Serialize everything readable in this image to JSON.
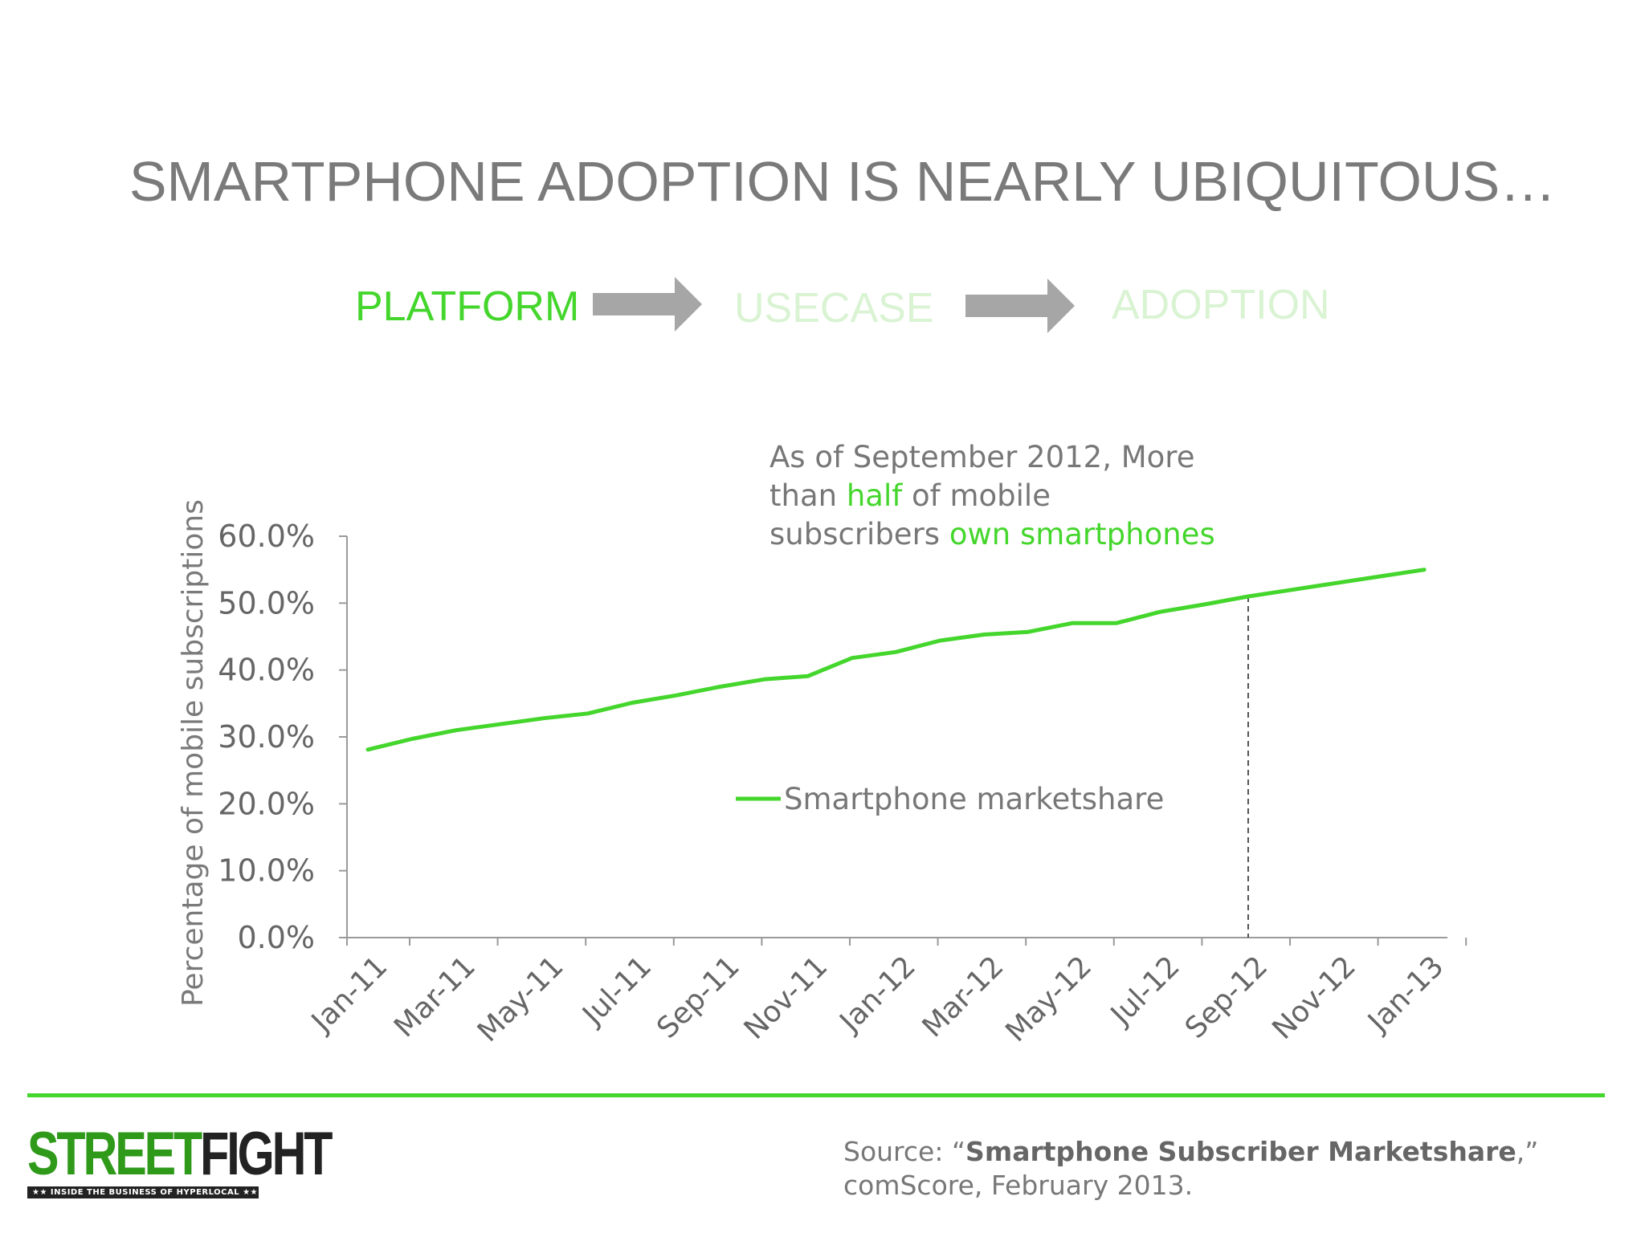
{
  "title": "SMARTPHONE ADOPTION IS NEARLY UBIQUITOUS…",
  "flow": {
    "steps": [
      {
        "label": "PLATFORM",
        "color": "#44d62c"
      },
      {
        "label": "USECASE",
        "color": "#d9f3d3"
      },
      {
        "label": "ADOPTION",
        "color": "#d9f3d3"
      }
    ],
    "arrow_color": "#a6a6a6"
  },
  "annotation": {
    "line1": "As of September 2012, More",
    "line2_pre": "than ",
    "line2_hl": "half",
    "line2_post": " of mobile",
    "line3_pre": "subscribers ",
    "line3_hl": "own smartphones"
  },
  "chart_data": {
    "type": "line",
    "title": "",
    "xlabel": "",
    "ylabel": "Percentage of mobile subscriptions",
    "ylim": [
      0,
      60
    ],
    "y_ticks": [
      "0.0%",
      "10.0%",
      "20.0%",
      "30.0%",
      "40.0%",
      "50.0%",
      "60.0%"
    ],
    "x_ticks": [
      "Jan-11",
      "Mar-11",
      "May-11",
      "Jul-11",
      "Sep-11",
      "Nov-11",
      "Jan-12",
      "Mar-12",
      "May-12",
      "Jul-12",
      "Sep-12",
      "Nov-12",
      "Jan-13"
    ],
    "categories": [
      "Jan-11",
      "Feb-11",
      "Mar-11",
      "Apr-11",
      "May-11",
      "Jun-11",
      "Jul-11",
      "Aug-11",
      "Sep-11",
      "Oct-11",
      "Nov-11",
      "Dec-11",
      "Jan-12",
      "Feb-12",
      "Mar-12",
      "Apr-12",
      "May-12",
      "Jun-12",
      "Jul-12",
      "Aug-12",
      "Sep-12",
      "Oct-12",
      "Nov-12",
      "Dec-12",
      "Jan-13"
    ],
    "series": [
      {
        "name": "Smartphone marketshare",
        "color": "#44d62c",
        "values": [
          28.1,
          29.7,
          31.0,
          31.9,
          32.8,
          33.5,
          35.1,
          36.2,
          37.5,
          38.6,
          39.1,
          41.8,
          42.7,
          44.4,
          45.3,
          45.7,
          47.0,
          47.0,
          48.7,
          49.8,
          51.0,
          52.0,
          53.0,
          54.0,
          55.0
        ]
      }
    ],
    "marker": {
      "category": "Sep-12",
      "style": "dashed"
    },
    "legend": "center",
    "grid": false
  },
  "footer": {
    "logo_street": "STREET",
    "logo_fight": "FIGHT",
    "logo_tagline": "★★ INSIDE THE BUSINESS OF HYPERLOCAL ★★",
    "source_prefix": "Source: “",
    "source_title": "Smartphone Subscriber Marketshare",
    "source_suffix": ",”",
    "source_line2": "comScore, February 2013.",
    "line_color": "#44d62c"
  }
}
